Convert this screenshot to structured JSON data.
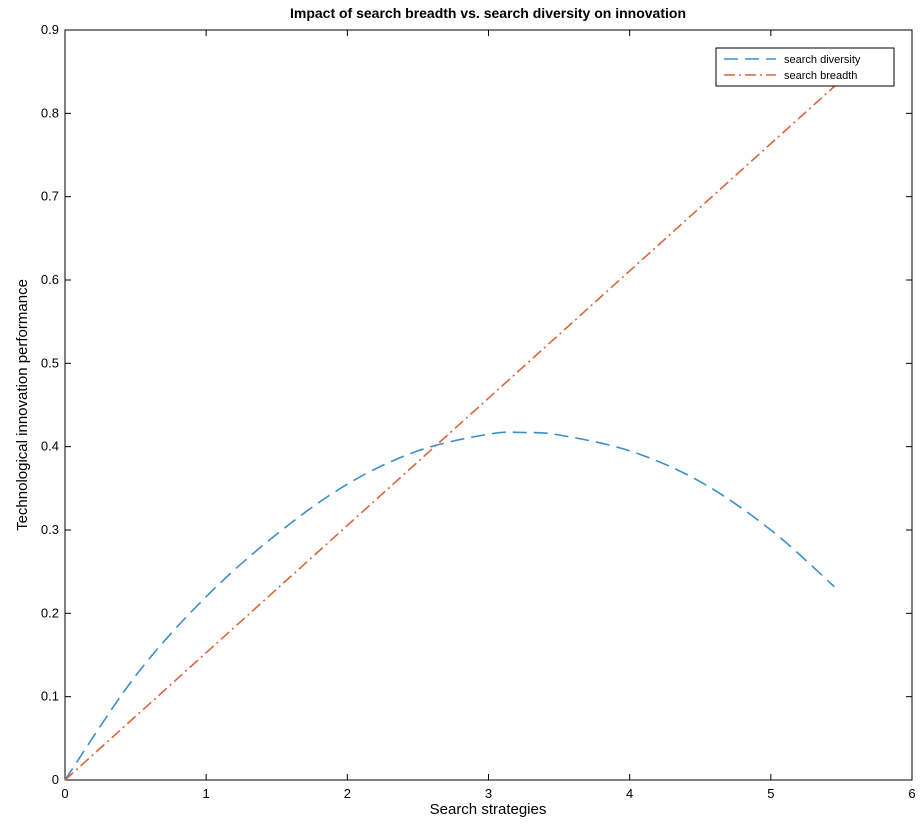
{
  "chart_data": {
    "type": "line",
    "title": "Impact of search breadth vs. search diversity on innovation",
    "xlabel": "Search strategies",
    "ylabel": "Technological innovation performance",
    "xlim": [
      0,
      6
    ],
    "ylim": [
      0,
      0.9
    ],
    "xticks": [
      0,
      1,
      2,
      3,
      4,
      5,
      6
    ],
    "xtick_labels": [
      "0",
      "1",
      "2",
      "3",
      "4",
      "5",
      "6"
    ],
    "yticks": [
      0,
      0.1,
      0.2,
      0.3,
      0.4,
      0.5,
      0.6,
      0.7,
      0.8,
      0.9
    ],
    "ytick_labels": [
      "0",
      "0.1",
      "0.2",
      "0.3",
      "0.4",
      "0.5",
      "0.6",
      "0.7",
      "0.8",
      "0.9"
    ],
    "grid": false,
    "legend_position": "top-right",
    "series": [
      {
        "name": "search diversity",
        "color": "#3a8fcb",
        "dash": "dashed",
        "x": [
          0,
          0.5,
          1.0,
          1.5,
          2.0,
          2.5,
          3.0,
          3.25,
          3.5,
          4.0,
          4.5,
          5.0,
          5.45
        ],
        "y": [
          0,
          0.125,
          0.22,
          0.295,
          0.355,
          0.395,
          0.415,
          0.417,
          0.414,
          0.395,
          0.358,
          0.3,
          0.232
        ]
      },
      {
        "name": "search breadth",
        "color": "#d9663a",
        "dash": "dash-dot",
        "x": [
          0,
          5.5
        ],
        "y": [
          0,
          0.84
        ]
      }
    ]
  }
}
